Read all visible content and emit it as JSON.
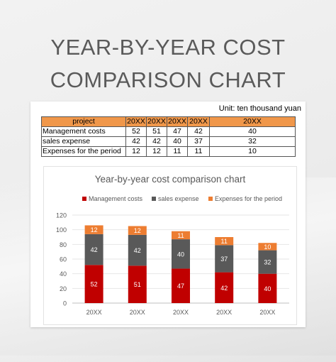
{
  "page_title_line1": "YEAR-BY-YEAR COST",
  "page_title_line2": "COMPARISON CHART",
  "unit_label": "Unit: ten thousand yuan",
  "table": {
    "header": [
      "project",
      "20XX",
      "20XX",
      "20XX",
      "20XX",
      "20XX"
    ],
    "rows": [
      {
        "label": "Management costs",
        "values": [
          "52",
          "51",
          "47",
          "42",
          "40"
        ]
      },
      {
        "label": "sales expense",
        "values": [
          "42",
          "42",
          "40",
          "37",
          "32"
        ]
      },
      {
        "label": "Expenses for the period",
        "values": [
          "12",
          "12",
          "11",
          "11",
          "10"
        ]
      }
    ]
  },
  "chart_data": {
    "type": "bar",
    "stacked": true,
    "title": "Year-by-year cost comparison chart",
    "categories": [
      "20XX",
      "20XX",
      "20XX",
      "20XX",
      "20XX"
    ],
    "series": [
      {
        "name": "Management costs",
        "values": [
          52,
          51,
          47,
          42,
          40
        ],
        "color": "#c00000"
      },
      {
        "name": "sales expense",
        "values": [
          42,
          42,
          40,
          37,
          32
        ],
        "color": "#595959"
      },
      {
        "name": "Expenses for the period",
        "values": [
          12,
          12,
          11,
          11,
          10
        ],
        "color": "#ed7d31"
      }
    ],
    "ylim": [
      0,
      120
    ],
    "yticks": [
      0,
      20,
      40,
      60,
      80,
      100,
      120
    ],
    "grid": true,
    "legend": "top"
  }
}
